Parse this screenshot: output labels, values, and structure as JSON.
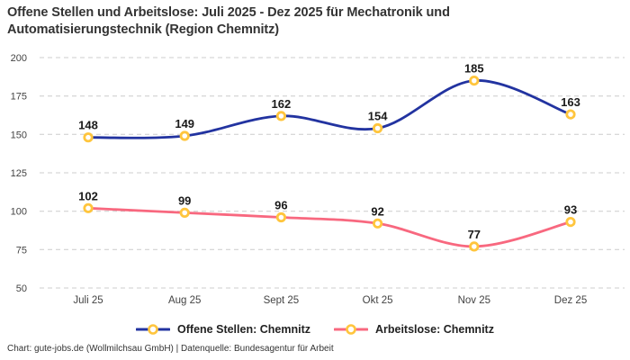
{
  "title": "Offene Stellen und Arbeitslose: Juli 2025 - Dez 2025 für Mechatronik und Automatisierungstechnik (Region Chemnitz)",
  "footer": "Chart: gute-jobs.de (Wollmilchsau GmbH) | Datenquelle: Bundesagentur für Arbeit",
  "colors": {
    "grid": "#cccccc",
    "axis_text": "#444444",
    "data_label": "#1a1a1a",
    "title_text": "#333333",
    "marker_fill": "#ffffff"
  },
  "chart_data": {
    "type": "line",
    "title": "Offene Stellen und Arbeitslose: Juli 2025 - Dez 2025 für Mechatronik und Automatisierungstechnik (Region Chemnitz)",
    "categories": [
      "Juli 25",
      "Aug 25",
      "Sept 25",
      "Okt 25",
      "Nov 25",
      "Dez 25"
    ],
    "series": [
      {
        "name": "Offene Stellen: Chemnitz",
        "values": [
          148,
          149,
          162,
          154,
          185,
          163
        ],
        "color": "#2233A0"
      },
      {
        "name": "Arbeitslose: Chemnitz",
        "values": [
          102,
          99,
          96,
          92,
          77,
          93
        ],
        "color": "#F8687F"
      }
    ],
    "marker_color": "#FFC53D",
    "yticks": [
      50,
      75,
      100,
      125,
      150,
      175,
      200
    ],
    "ylim": [
      50,
      200
    ],
    "xlabel": "",
    "ylabel": "",
    "grid": "horizontal-dashed",
    "curve": "smooth",
    "legend_position": "bottom"
  }
}
